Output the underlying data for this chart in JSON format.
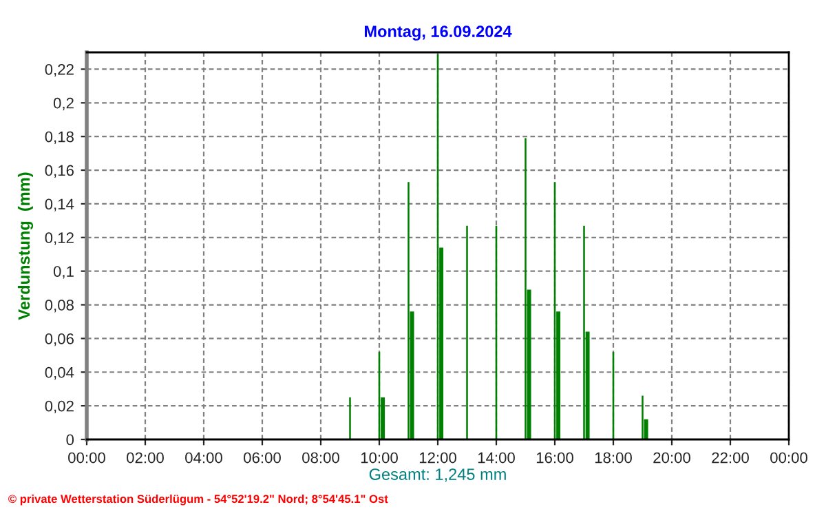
{
  "chart_data": {
    "type": "bar",
    "title": "Montag, 16.09.2024",
    "ylabel": "Verdunstung  (mm)",
    "xlabel": "Gesamt: 1,245 mm",
    "annotations": [
      "© private Wetterstation Süderlügum - 54°52'19.2\" Nord; 8°54'45.1\" Ost"
    ],
    "series": [
      {
        "color": "#008000",
        "x": [
          9,
          10,
          11,
          12,
          13,
          14,
          15,
          16,
          17,
          18,
          19
        ],
        "values": [
          0.025,
          0.052,
          0.153,
          0.229,
          0.127,
          0.127,
          0.179,
          0.153,
          0.127,
          0.052,
          0.026
        ]
      },
      {
        "color": "#008000",
        "x": [
          10.05,
          11.05,
          12.05,
          15.05,
          16.05,
          17.05,
          19.05
        ],
        "values": [
          0.025,
          0.076,
          0.114,
          0.089,
          0.076,
          0.064,
          0.012
        ]
      }
    ],
    "xlim": [
      0,
      24
    ],
    "xticks": [
      {
        "value": 0,
        "label": "00:00"
      },
      {
        "value": 2,
        "label": "02:00"
      },
      {
        "value": 4,
        "label": "04:00"
      },
      {
        "value": 6,
        "label": "06:00"
      },
      {
        "value": 8,
        "label": "08:00"
      },
      {
        "value": 10,
        "label": "10:00"
      },
      {
        "value": 12,
        "label": "12:00"
      },
      {
        "value": 14,
        "label": "14:00"
      },
      {
        "value": 16,
        "label": "16:00"
      },
      {
        "value": 18,
        "label": "18:00"
      },
      {
        "value": 20,
        "label": "20:00"
      },
      {
        "value": 22,
        "label": "22:00"
      },
      {
        "value": 24,
        "label": "00:00"
      }
    ],
    "ylim": [
      0,
      0.23
    ],
    "yticks": [
      {
        "value": 0,
        "label": "0"
      },
      {
        "value": 0.02,
        "label": "0,02"
      },
      {
        "value": 0.04,
        "label": "0,04"
      },
      {
        "value": 0.06,
        "label": "0,06"
      },
      {
        "value": 0.08,
        "label": "0,08"
      },
      {
        "value": 0.1,
        "label": "0,1"
      },
      {
        "value": 0.12,
        "label": "0,12"
      },
      {
        "value": 0.14,
        "label": "0,14"
      },
      {
        "value": 0.16,
        "label": "0,16"
      },
      {
        "value": 0.18,
        "label": "0,18"
      },
      {
        "value": 0.2,
        "label": "0,2"
      },
      {
        "value": 0.22,
        "label": "0,22"
      }
    ],
    "grid": true
  }
}
